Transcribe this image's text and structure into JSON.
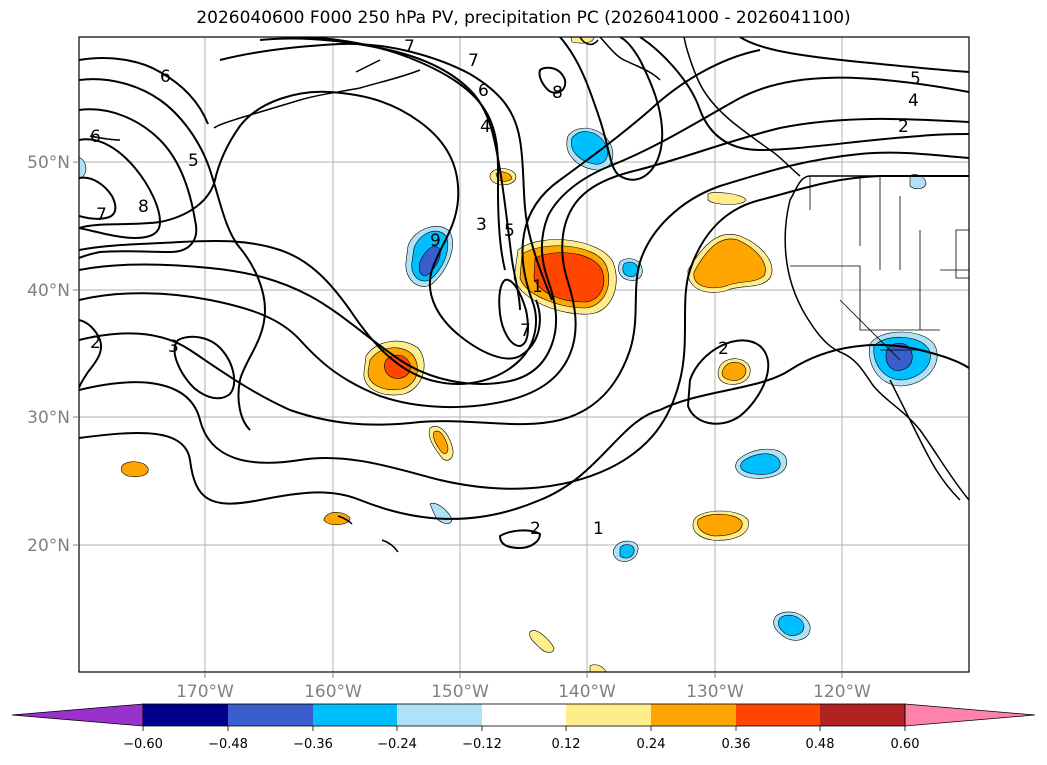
{
  "title": "2026040600 F000 250 hPa PV, precipitation PC (2026041000 - 2026041100)",
  "lon_ticks": [
    "170°W",
    "160°W",
    "150°W",
    "140°W",
    "130°W",
    "120°W"
  ],
  "lat_ticks": [
    "50°N",
    "40°N",
    "30°N",
    "20°N"
  ],
  "colorbar": {
    "colors": [
      "#9932cc",
      "#00008b",
      "#3a5fcd",
      "#00bfff",
      "#afe2f7",
      "#ffffff",
      "#ffec8b",
      "#ffa500",
      "#ff4500",
      "#b22222",
      "#ff82ab"
    ],
    "tick_labels": [
      "−0.60",
      "−0.48",
      "−0.36",
      "−0.24",
      "−0.12",
      "0.12",
      "0.24",
      "0.36",
      "0.48",
      "0.60"
    ]
  },
  "contour_labels": [
    "6",
    "6",
    "7",
    "5",
    "8",
    "7",
    "3",
    "2",
    "9",
    "7",
    "6",
    "4",
    "3",
    "5",
    "1",
    "8",
    "7",
    "5",
    "4",
    "2",
    "2",
    "2",
    "1"
  ],
  "layers": {
    "coastline_color": "#000000",
    "contour_color": "#000000",
    "grid_color": "#b0b0b0"
  }
}
